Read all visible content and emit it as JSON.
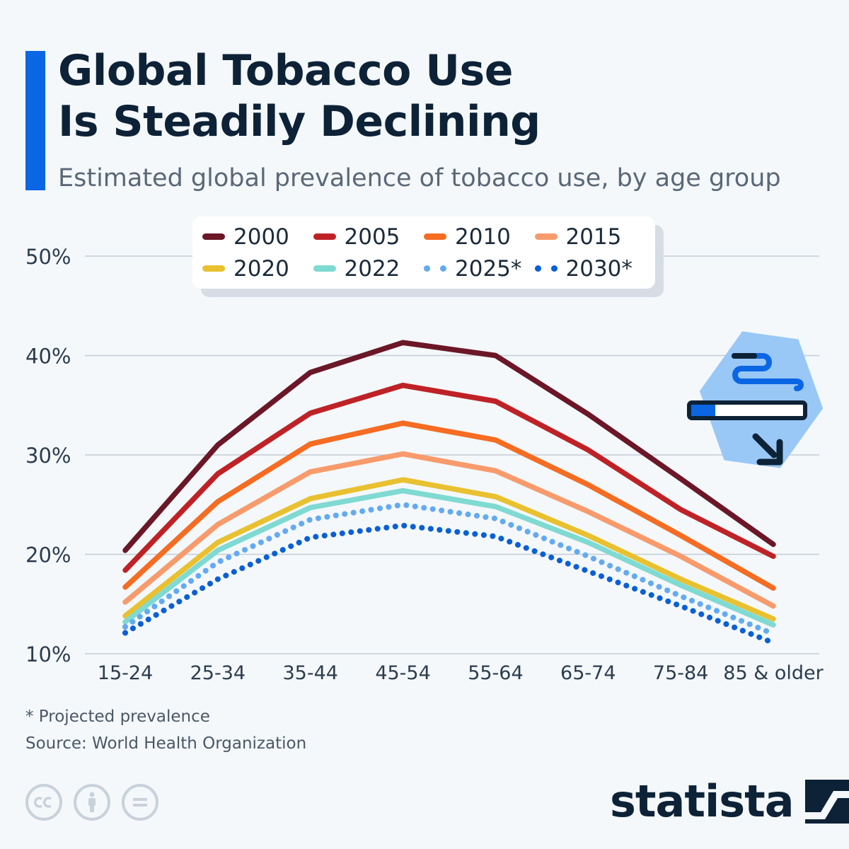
{
  "header": {
    "title_line1": "Global Tobacco Use",
    "title_line2": "Is Steadily Declining",
    "subtitle": "Estimated global prevalence of tobacco use, by age group"
  },
  "chart_data": {
    "type": "line",
    "title": "Global Tobacco Use Is Steadily Declining",
    "subtitle": "Estimated global prevalence of tobacco use, by age group",
    "xlabel": "",
    "ylabel": "",
    "categories": [
      "15-24",
      "25-34",
      "35-44",
      "45-54",
      "55-64",
      "65-74",
      "75-84",
      "85 & older"
    ],
    "ylim": [
      10,
      50
    ],
    "yticks": [
      10,
      20,
      30,
      40,
      50
    ],
    "ytick_labels": [
      "10%",
      "20%",
      "30%",
      "40%",
      "50%"
    ],
    "grid": true,
    "legend_position": "top",
    "series": [
      {
        "name": "2000",
        "color": "#6b1727",
        "dotted": false,
        "values": [
          20.4,
          31.0,
          38.3,
          41.3,
          40.0,
          34.1,
          27.6,
          21.0
        ]
      },
      {
        "name": "2005",
        "color": "#bf2226",
        "dotted": false,
        "values": [
          18.4,
          28.1,
          34.2,
          37.0,
          35.4,
          30.5,
          24.5,
          19.8
        ]
      },
      {
        "name": "2010",
        "color": "#f56c22",
        "dotted": false,
        "values": [
          16.7,
          25.3,
          31.1,
          33.2,
          31.5,
          27.0,
          21.9,
          16.6
        ]
      },
      {
        "name": "2015",
        "color": "#f89b6c",
        "dotted": false,
        "values": [
          15.2,
          23.0,
          28.3,
          30.1,
          28.4,
          24.3,
          19.8,
          14.8
        ]
      },
      {
        "name": "2020",
        "color": "#e9c130",
        "dotted": false,
        "values": [
          13.8,
          21.2,
          25.6,
          27.5,
          25.8,
          21.9,
          17.5,
          13.5
        ]
      },
      {
        "name": "2022",
        "color": "#7fdad2",
        "dotted": false,
        "values": [
          13.2,
          20.4,
          24.7,
          26.4,
          24.8,
          21.2,
          16.9,
          12.9
        ]
      },
      {
        "name": "2025*",
        "color": "#64aaf0",
        "dotted": true,
        "values": [
          12.7,
          19.2,
          23.5,
          25.0,
          23.6,
          19.8,
          15.8,
          12.0
        ]
      },
      {
        "name": "2030*",
        "color": "#0b5fd6",
        "dotted": true,
        "values": [
          12.1,
          17.5,
          21.7,
          22.9,
          21.8,
          18.3,
          14.8,
          11.1
        ]
      }
    ]
  },
  "legend": [
    {
      "label": "2000",
      "color": "#6b1727",
      "dotted": false
    },
    {
      "label": "2005",
      "color": "#bf2226",
      "dotted": false
    },
    {
      "label": "2010",
      "color": "#f56c22",
      "dotted": false
    },
    {
      "label": "2015",
      "color": "#f89b6c",
      "dotted": false
    },
    {
      "label": "2020",
      "color": "#e9c130",
      "dotted": false
    },
    {
      "label": "2022",
      "color": "#7fdad2",
      "dotted": false
    },
    {
      "label": "2025*",
      "color": "#64aaf0",
      "dotted": true
    },
    {
      "label": "2030*",
      "color": "#0b5fd6",
      "dotted": true
    }
  ],
  "illustration": {
    "icon": "cigarette-smoke-declining-icon",
    "colors": {
      "bg": "#99c8f7",
      "stroke": "#0d2236",
      "accent": "#0b66e4"
    }
  },
  "footer": {
    "footnote": "* Projected prevalence",
    "source": "Source: World Health Organization",
    "license_icons": [
      "cc-icon",
      "by-icon",
      "nd-icon"
    ],
    "brand": "statista"
  },
  "colors": {
    "accent": "#0b66e4",
    "background": "#f4f8fb",
    "title": "#0d2236",
    "grid": "#c5ccd4"
  }
}
